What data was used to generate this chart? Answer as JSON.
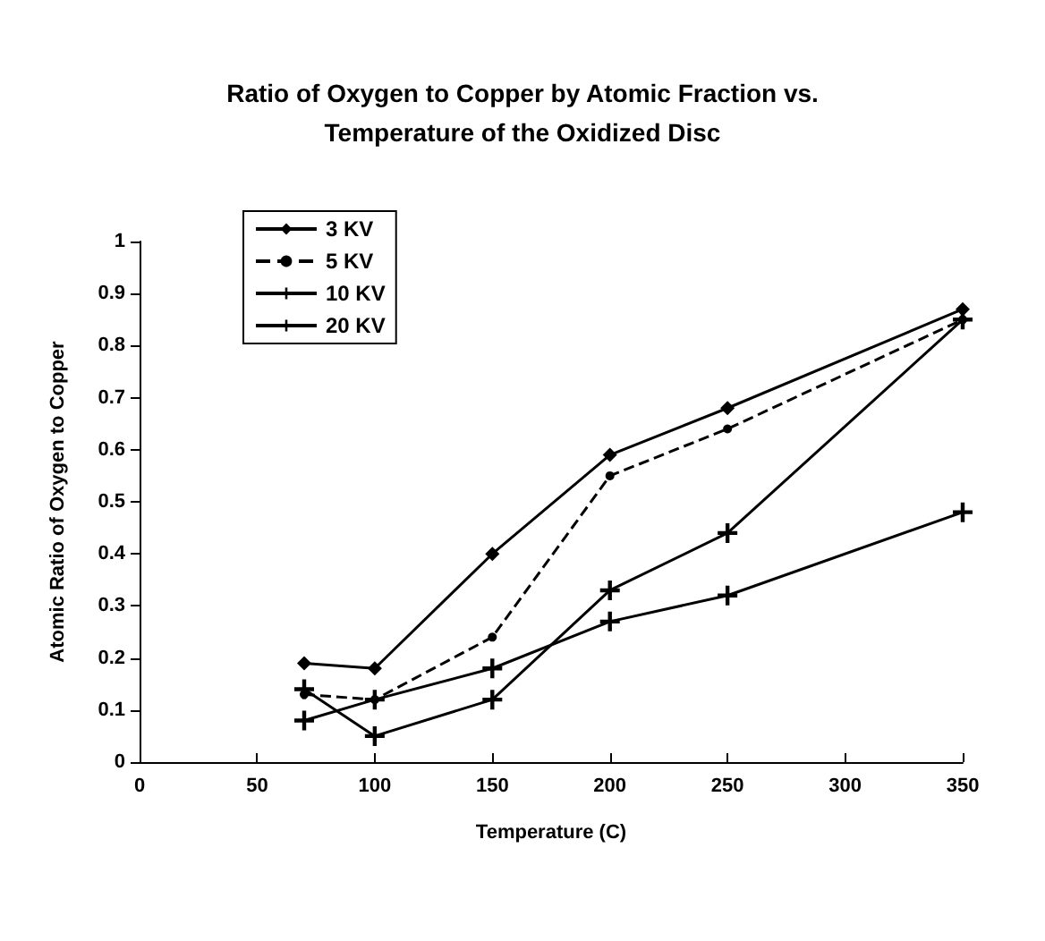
{
  "chart_data": {
    "type": "line",
    "title": "Ratio of Oxygen to Copper by Atomic Fraction vs.\nTemperature of the Oxidized Disc",
    "xlabel": "Temperature (C)",
    "ylabel": "Atomic Ratio of Oxygen to Copper",
    "x": [
      70,
      100,
      150,
      200,
      250,
      350
    ],
    "series": [
      {
        "name": "3 KV",
        "color": "#000000",
        "marker": "diamond",
        "line_style": "solid",
        "values": [
          0.19,
          0.18,
          0.4,
          0.59,
          0.68,
          0.87
        ]
      },
      {
        "name": "5 KV",
        "color": "#000000",
        "marker": "circle",
        "line_style": "dashed",
        "values": [
          0.13,
          0.12,
          0.24,
          0.55,
          0.64,
          0.85
        ]
      },
      {
        "name": "10 KV",
        "color": "#000000",
        "marker": "cross",
        "line_style": "solid",
        "values": [
          0.08,
          0.12,
          0.18,
          0.27,
          0.32,
          0.48
        ]
      },
      {
        "name": "20 KV",
        "color": "#000000",
        "marker": "cross",
        "line_style": "solid",
        "values": [
          0.14,
          0.05,
          0.12,
          0.33,
          0.44,
          0.85
        ]
      }
    ],
    "xlim": [
      0,
      350
    ],
    "xticks": [
      0,
      50,
      100,
      150,
      200,
      250,
      300,
      350
    ],
    "ylim": [
      0,
      1
    ],
    "yticks": [
      0,
      0.1,
      0.2,
      0.3,
      0.4,
      0.5,
      0.6,
      0.7,
      0.8,
      0.9,
      1
    ],
    "grid": false,
    "legend": "top left"
  }
}
